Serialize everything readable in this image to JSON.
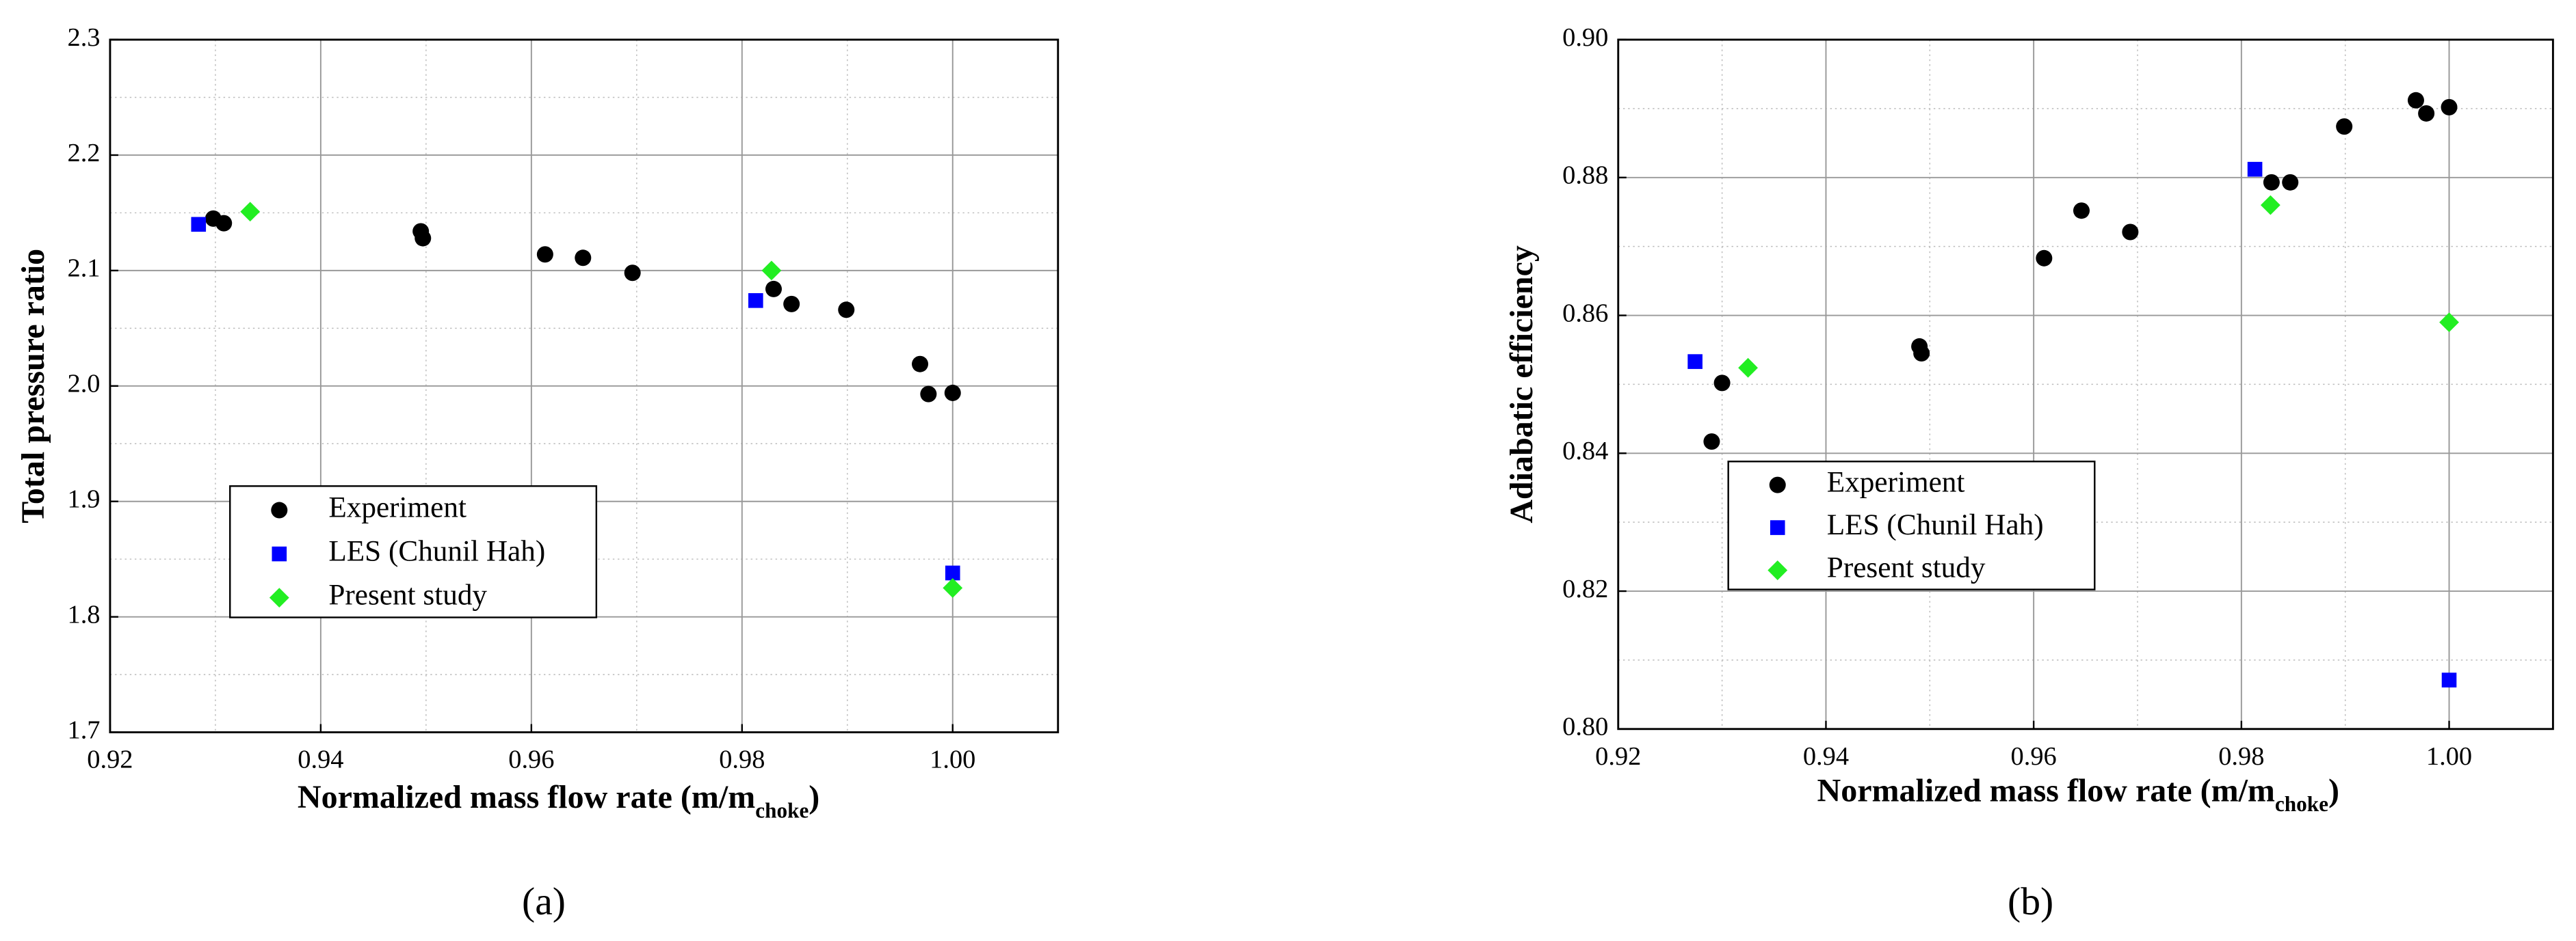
{
  "chart_data": [
    {
      "type": "scatter",
      "caption": "(a)",
      "x_label": "Normalized mass flow rate (m/m",
      "x_label_sub": "choke",
      "x_label_end": ")",
      "y_label": "Total pressure ratio",
      "xlim": [
        0.92,
        1.01
      ],
      "xticks": [
        0.92,
        0.94,
        0.96,
        0.98,
        {
          "value": 1,
          "label": "1.00"
        }
      ],
      "ylim": [
        1.7,
        2.3
      ],
      "yticks": [
        1.7,
        1.8,
        1.9,
        {
          "value": 2,
          "label": "2.0"
        },
        2.1,
        2.2,
        2.3
      ],
      "grid": true,
      "minor_grid": true,
      "legend": "lower left",
      "series": [
        {
          "name": "Experiment",
          "color": "#000000",
          "marker": "circle",
          "x": [
            0.9298,
            0.9308,
            0.9495,
            0.9497,
            0.9613,
            0.9649,
            0.9696,
            0.983,
            0.9847,
            0.9899,
            0.9969,
            0.9977,
            1.0
          ],
          "values": [
            2.145,
            2.141,
            2.134,
            2.128,
            2.114,
            2.111,
            2.098,
            2.084,
            2.071,
            2.066,
            2.019,
            1.993,
            1.994
          ]
        },
        {
          "name": "LES (Chunil Hah)",
          "color": "#0000ff",
          "marker": "square",
          "x": [
            0.9284,
            0.9813,
            1.0
          ],
          "values": [
            2.14,
            2.074,
            1.838
          ]
        },
        {
          "name": "Present study",
          "color": "#22ee22",
          "marker": "diamond",
          "x": [
            0.9333,
            0.9828,
            1.0
          ],
          "values": [
            2.151,
            2.1,
            1.825
          ]
        }
      ]
    },
    {
      "type": "scatter",
      "caption": "(b)",
      "x_label": "Normalized mass flow rate (m/m",
      "x_label_sub": "choke",
      "x_label_end": ")",
      "y_label": "Adiabatic efficiency",
      "xlim": [
        0.92,
        1.01
      ],
      "xticks": [
        0.92,
        0.94,
        0.96,
        0.98,
        {
          "value": 1,
          "label": "1.00"
        }
      ],
      "ylim": [
        0.8,
        0.9
      ],
      "yticks": [
        {
          "value": 0.8,
          "label": "0.80"
        },
        0.82,
        0.84,
        0.86,
        0.88,
        {
          "value": 0.9,
          "label": "0.90"
        }
      ],
      "grid": true,
      "minor_grid": true,
      "legend": "lower left",
      "series": [
        {
          "name": "Experiment",
          "color": "#000000",
          "marker": "circle",
          "x": [
            0.929,
            0.93,
            0.949,
            0.9492,
            0.961,
            0.9646,
            0.9693,
            0.9829,
            0.9847,
            0.9899,
            0.9968,
            0.9978,
            1.0
          ],
          "values": [
            0.8417,
            0.8502,
            0.8555,
            0.8545,
            0.8683,
            0.8752,
            0.8721,
            0.8793,
            0.8793,
            0.8874,
            0.8912,
            0.8893,
            0.8902
          ]
        },
        {
          "name": "LES (Chunil Hah)",
          "color": "#0000ff",
          "marker": "square",
          "x": [
            0.9274,
            0.9813,
            1.0
          ],
          "values": [
            0.8533,
            0.8812,
            0.8071
          ]
        },
        {
          "name": "Present study",
          "color": "#22ee22",
          "marker": "diamond",
          "x": [
            0.9325,
            0.9828,
            1.0
          ],
          "values": [
            0.8524,
            0.876,
            0.859
          ]
        }
      ]
    }
  ]
}
